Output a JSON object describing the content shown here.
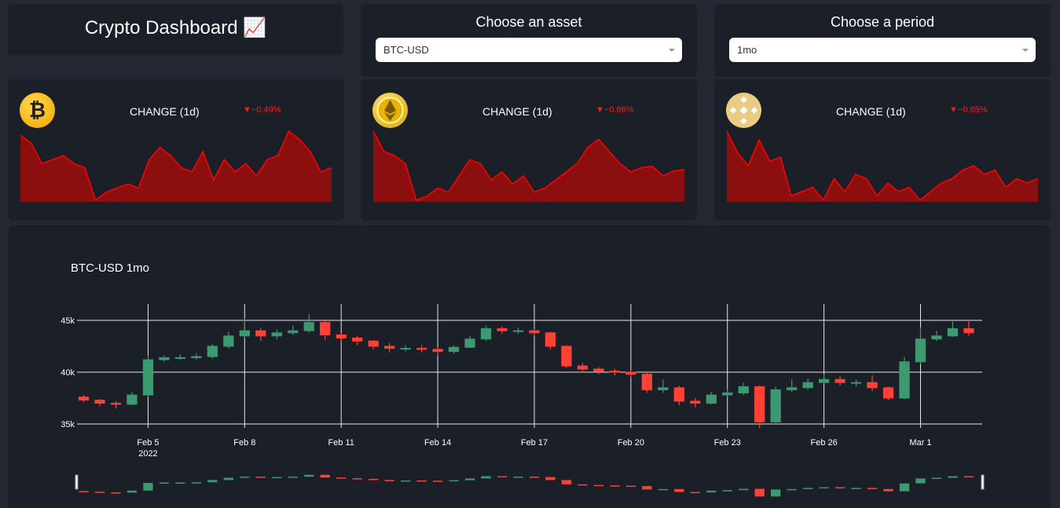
{
  "header": {
    "title": "Crypto Dashboard 📈"
  },
  "asset_select": {
    "label": "Choose an asset",
    "value": "BTC-USD"
  },
  "period_select": {
    "label": "Choose a period",
    "value": "1mo"
  },
  "cards": [
    {
      "label": "CHANGE (1d)",
      "change": -0.49,
      "change_label": "▼−0.49%",
      "values": [
        44080,
        44020,
        43870,
        43900,
        43930,
        43870,
        43840,
        43600,
        43660,
        43690,
        43720,
        43690,
        43900,
        43990,
        43930,
        43840,
        43810,
        43960,
        43750,
        43900,
        43810,
        43870,
        43780,
        43900,
        43930,
        44110,
        44050,
        43960,
        43810,
        43840
      ]
    },
    {
      "label": "CHANGE (1d)",
      "change": -0.66,
      "change_label": "▼−0.66%",
      "values": [
        3085,
        3060,
        3055,
        3045,
        3000,
        3005,
        3015,
        3010,
        3030,
        3050,
        3045,
        3025,
        3035,
        3020,
        3030,
        3010,
        3015,
        3025,
        3035,
        3045,
        3065,
        3075,
        3060,
        3045,
        3035,
        3040,
        3042,
        3030,
        3036,
        3038
      ]
    },
    {
      "label": "CHANGE (1d)",
      "change": -0.65,
      "change_label": "▼−0.65%",
      "values": [
        425.5,
        423,
        421.5,
        424.5,
        422,
        422.5,
        418,
        418.5,
        419,
        417.5,
        420,
        418.5,
        420.5,
        420,
        418,
        419.5,
        418.5,
        419,
        417.5,
        418.5,
        419.5,
        420,
        421,
        421.5,
        420.5,
        421,
        419,
        420,
        419.5,
        420
      ]
    }
  ],
  "chart_data": {
    "type": "candlestick",
    "title": "BTC-USD 1mo",
    "x": [
      "2022-02-03 00:00",
      "2022-02-03 12:00",
      "2022-02-04 00:00",
      "2022-02-04 12:00",
      "2022-02-05 00:00",
      "2022-02-05 12:00",
      "2022-02-06 00:00",
      "2022-02-06 12:00",
      "2022-02-07 00:00",
      "2022-02-07 12:00",
      "2022-02-08 00:00",
      "2022-02-08 12:00",
      "2022-02-09 00:00",
      "2022-02-09 12:00",
      "2022-02-10 00:00",
      "2022-02-10 12:00",
      "2022-02-11 00:00",
      "2022-02-11 12:00",
      "2022-02-12 00:00",
      "2022-02-12 12:00",
      "2022-02-13 00:00",
      "2022-02-13 12:00",
      "2022-02-14 00:00",
      "2022-02-14 12:00",
      "2022-02-15 00:00",
      "2022-02-15 12:00",
      "2022-02-16 00:00",
      "2022-02-16 12:00",
      "2022-02-17 00:00",
      "2022-02-17 12:00",
      "2022-02-18 00:00",
      "2022-02-18 12:00",
      "2022-02-19 00:00",
      "2022-02-19 12:00",
      "2022-02-20 00:00",
      "2022-02-20 12:00",
      "2022-02-21 00:00",
      "2022-02-21 12:00",
      "2022-02-22 00:00",
      "2022-02-22 12:00",
      "2022-02-23 00:00",
      "2022-02-23 12:00",
      "2022-02-24 00:00",
      "2022-02-24 12:00",
      "2022-02-25 00:00",
      "2022-02-25 12:00",
      "2022-02-26 00:00",
      "2022-02-26 12:00",
      "2022-02-27 00:00",
      "2022-02-27 12:00",
      "2022-02-28 00:00",
      "2022-02-28 12:00",
      "2022-03-01 00:00",
      "2022-03-01 12:00",
      "2022-03-02 00:00",
      "2022-03-02 12:00"
    ],
    "open": [
      37600,
      37300,
      37000,
      36900,
      37800,
      41200,
      41400,
      41400,
      41500,
      42500,
      43500,
      44000,
      43500,
      43800,
      44000,
      44800,
      43600,
      43300,
      43000,
      42500,
      42300,
      42300,
      42200,
      42000,
      42400,
      43200,
      44200,
      44000,
      44000,
      43800,
      42500,
      40600,
      40300,
      40100,
      40000,
      39800,
      38300,
      38500,
      37200,
      37000,
      37800,
      38000,
      38600,
      35200,
      38300,
      38500,
      39000,
      39300,
      39000,
      39000,
      38500,
      37500,
      41000,
      43200,
      43500,
      44200
    ],
    "high": [
      37800,
      37400,
      37200,
      38100,
      41600,
      41600,
      41700,
      41800,
      42700,
      43900,
      45200,
      44300,
      44100,
      44500,
      45600,
      45000,
      43800,
      43500,
      43100,
      42800,
      42600,
      42600,
      42400,
      42600,
      43500,
      44500,
      44400,
      44300,
      44200,
      43900,
      42600,
      40900,
      40500,
      40300,
      40200,
      39900,
      39300,
      38700,
      37500,
      38100,
      38400,
      39000,
      38700,
      38600,
      39300,
      39400,
      39800,
      39600,
      39300,
      39700,
      38600,
      41500,
      44300,
      44000,
      44900,
      45100
    ],
    "low": [
      37100,
      36700,
      36500,
      36800,
      37600,
      41000,
      41200,
      41200,
      41300,
      42300,
      43300,
      43000,
      43200,
      43600,
      43800,
      43100,
      42900,
      42600,
      42200,
      41900,
      42000,
      41900,
      41600,
      41800,
      42300,
      43000,
      43700,
      43700,
      43500,
      42200,
      40400,
      40000,
      39800,
      39700,
      39500,
      38000,
      38000,
      36800,
      36600,
      36900,
      37600,
      37800,
      34600,
      35000,
      38100,
      38300,
      38900,
      38700,
      38600,
      38200,
      37300,
      37400,
      40800,
      43000,
      43400,
      43500
    ],
    "close": [
      37300,
      37000,
      36900,
      37800,
      41200,
      41400,
      41400,
      41500,
      42500,
      43500,
      44000,
      43500,
      43800,
      44000,
      44800,
      43600,
      43300,
      43000,
      42500,
      42300,
      42300,
      42200,
      42000,
      42400,
      43200,
      44200,
      44000,
      44000,
      43800,
      42500,
      40600,
      40300,
      40100,
      40000,
      39800,
      38300,
      38500,
      37200,
      37000,
      37800,
      38000,
      38600,
      35200,
      38300,
      38500,
      39000,
      39300,
      39000,
      39000,
      38500,
      37500,
      41000,
      43200,
      43500,
      44200,
      43800
    ],
    "increasing_color": "#3d9970",
    "decreasing_color": "#ff4136",
    "xlim": [
      "2022-02-02 19:00",
      "2022-03-02 22:00"
    ],
    "xticks": [
      {
        "value": "2022-02-05 00:00",
        "label": "Feb 5"
      },
      {
        "value": "2022-02-08 00:00",
        "label": "Feb 8"
      },
      {
        "value": "2022-02-11 00:00",
        "label": "Feb 11"
      },
      {
        "value": "2022-02-14 00:00",
        "label": "Feb 14"
      },
      {
        "value": "2022-02-17 00:00",
        "label": "Feb 17"
      },
      {
        "value": "2022-02-20 00:00",
        "label": "Feb 20"
      },
      {
        "value": "2022-02-23 00:00",
        "label": "Feb 23"
      },
      {
        "value": "2022-02-26 00:00",
        "label": "Feb 26"
      },
      {
        "value": "2022-03-01 00:00",
        "label": "Mar 1"
      }
    ],
    "x_year_label": "2022",
    "ylim": [
      34620,
      45760
    ],
    "yticks": [
      {
        "value": 35000,
        "label": "35k"
      },
      {
        "value": 40000,
        "label": "40k"
      },
      {
        "value": 45000,
        "label": "45k"
      }
    ],
    "grid": true,
    "rangeslider": true
  }
}
